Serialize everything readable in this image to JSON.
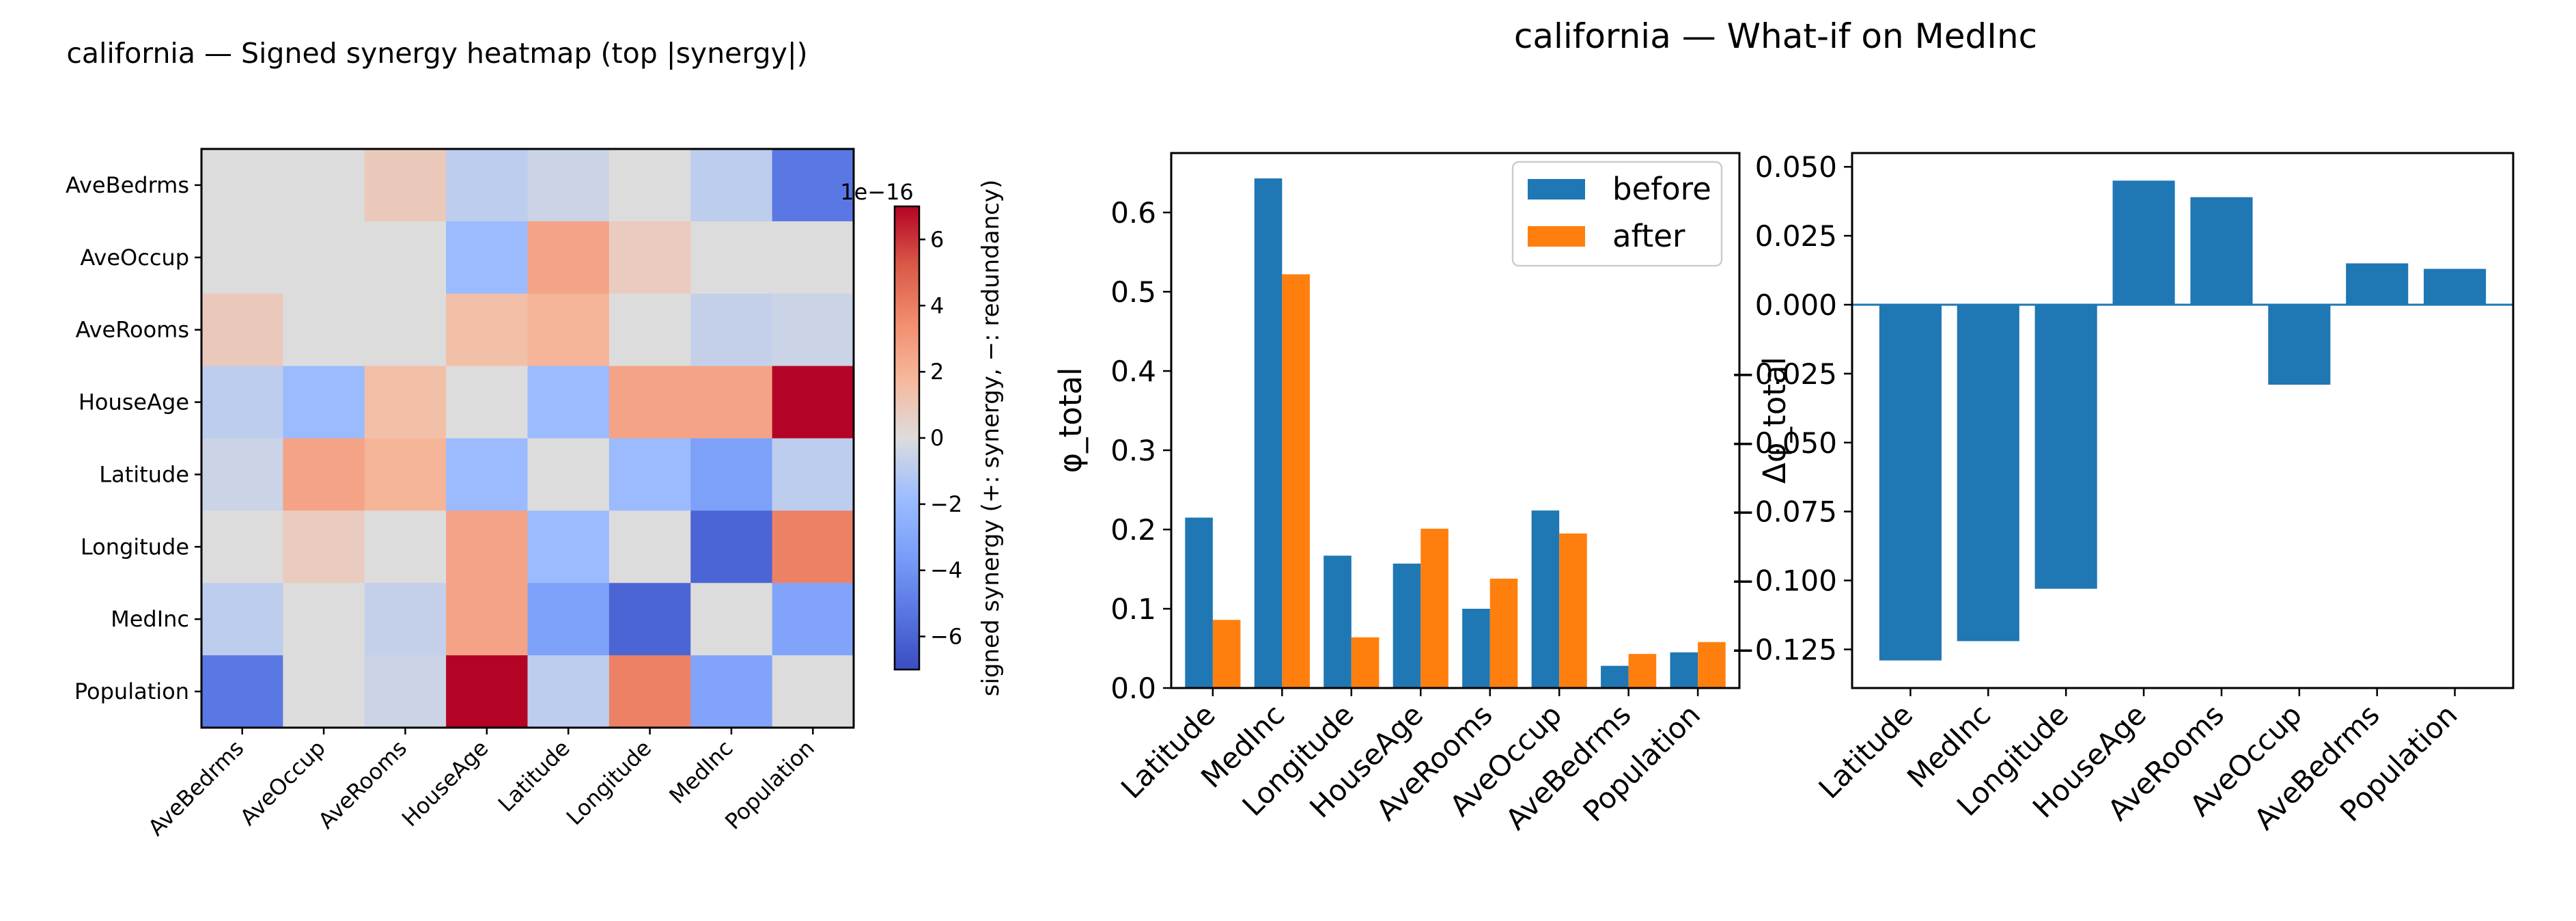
{
  "suptitle": "california — What-if on MedInc",
  "chart_data": [
    {
      "type": "heatmap",
      "title": "california — Signed synergy heatmap (top |synergy|)",
      "rows": [
        "AveBedrms",
        "AveOccup",
        "AveRooms",
        "HouseAge",
        "Latitude",
        "Longitude",
        "MedInc",
        "Population"
      ],
      "columns": [
        "AveBedrms",
        "AveOccup",
        "AveRooms",
        "HouseAge",
        "Latitude",
        "Longitude",
        "MedInc",
        "Population"
      ],
      "values_x1e16": [
        [
          0,
          0,
          0.9,
          -0.9,
          -0.5,
          0,
          -0.9,
          -5.2
        ],
        [
          0,
          0,
          0,
          -1.9,
          2.6,
          0.8,
          0,
          0
        ],
        [
          0.9,
          0,
          0,
          1.4,
          1.9,
          0,
          -0.7,
          -0.5
        ],
        [
          -0.9,
          -1.9,
          1.4,
          0,
          -1.9,
          2.6,
          2.6,
          7.0
        ],
        [
          -0.5,
          2.6,
          1.9,
          -1.9,
          0,
          -1.9,
          -3.4,
          -0.9
        ],
        [
          0,
          0.8,
          0,
          2.6,
          -1.9,
          0,
          -6.0,
          3.9
        ],
        [
          -0.9,
          0,
          -0.7,
          2.6,
          -3.4,
          -6.0,
          0,
          -3.2
        ],
        [
          -5.2,
          0,
          -0.5,
          7.0,
          -0.9,
          3.9,
          -3.2,
          0
        ]
      ],
      "colormap": "coolwarm",
      "vmin": -7.0,
      "vmax": 7.0,
      "colorbar": {
        "label": "signed synergy  (+: synergy, −: redundancy)",
        "ticks": [
          -6,
          -4,
          -2,
          0,
          2,
          4,
          6
        ],
        "tick_labels": [
          "−6",
          "−4",
          "−2",
          "0",
          "2",
          "4",
          "6"
        ],
        "offset_text": "1e−16"
      }
    },
    {
      "type": "bar",
      "categories": [
        "Latitude",
        "MedInc",
        "Longitude",
        "HouseAge",
        "AveRooms",
        "AveOccup",
        "AveBedrms",
        "Population"
      ],
      "series": [
        {
          "name": "before",
          "color": "#1f77b4",
          "values": [
            0.215,
            0.643,
            0.167,
            0.157,
            0.1,
            0.224,
            0.028,
            0.045
          ]
        },
        {
          "name": "after",
          "color": "#ff7f0e",
          "values": [
            0.086,
            0.522,
            0.064,
            0.201,
            0.138,
            0.195,
            0.043,
            0.058
          ]
        }
      ],
      "ylabel": "φ_total",
      "xlabel": "",
      "ylim": [
        0,
        0.675
      ],
      "yticks": [
        0.0,
        0.1,
        0.2,
        0.3,
        0.4,
        0.5,
        0.6
      ],
      "ytick_labels": [
        "0.0",
        "0.1",
        "0.2",
        "0.3",
        "0.4",
        "0.5",
        "0.6"
      ],
      "legend": "top-right"
    },
    {
      "type": "bar",
      "categories": [
        "Latitude",
        "MedInc",
        "Longitude",
        "HouseAge",
        "AveRooms",
        "AveOccup",
        "AveBedrms",
        "Population"
      ],
      "values": [
        -0.129,
        -0.122,
        -0.103,
        0.045,
        0.039,
        -0.029,
        0.015,
        0.013
      ],
      "color": "#1f77b4",
      "baseline_color": "#1f77b4",
      "ylabel": "Δφ_total",
      "xlabel": "",
      "ylim": [
        -0.139,
        0.055
      ],
      "yticks": [
        0.05,
        0.025,
        0.0,
        -0.025,
        -0.05,
        -0.075,
        -0.1,
        -0.125
      ],
      "ytick_labels": [
        "0.050",
        "0.025",
        "0.000",
        "−0.025",
        "−0.050",
        "−0.075",
        "−0.100",
        "−0.125"
      ]
    }
  ]
}
